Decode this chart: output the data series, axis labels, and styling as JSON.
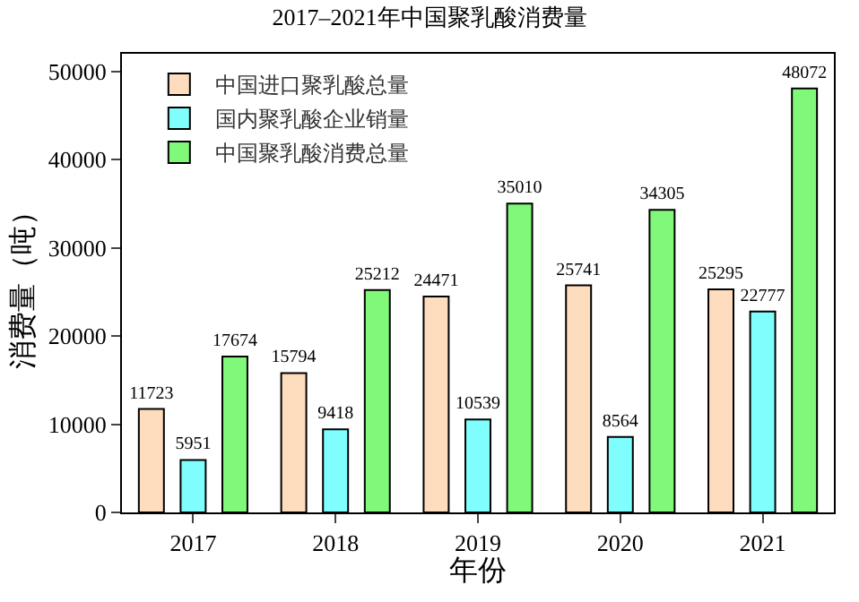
{
  "chart_data": {
    "type": "bar",
    "title": "2017–2021年中国聚乳酸消费量",
    "xlabel": "年份",
    "ylabel": "消费量（吨）",
    "categories": [
      "2017",
      "2018",
      "2019",
      "2020",
      "2021"
    ],
    "series": [
      {
        "name": "中国进口聚乳酸总量",
        "color": "#fedcbe",
        "values": [
          11723,
          15794,
          24471,
          25741,
          25295
        ]
      },
      {
        "name": "国内聚乳酸企业销量",
        "color": "#80fefe",
        "values": [
          5951,
          9418,
          10539,
          8564,
          22777
        ]
      },
      {
        "name": "中国聚乳酸消费总量",
        "color": "#80f87a",
        "values": [
          17674,
          25212,
          35010,
          34305,
          48072
        ]
      }
    ],
    "ylim": [
      0,
      52000
    ],
    "yticks": [
      0,
      10000,
      20000,
      30000,
      40000,
      50000
    ],
    "data_labels": true,
    "legend": "top left"
  }
}
